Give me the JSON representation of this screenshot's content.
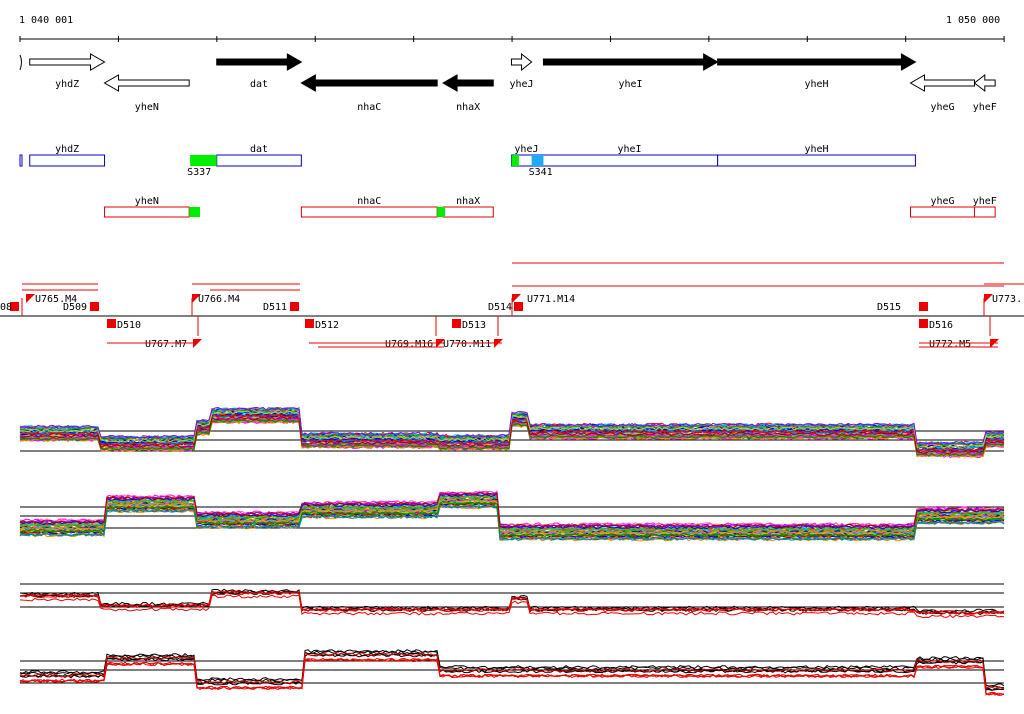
{
  "ruler": {
    "start_label": "1 040 001",
    "end_label": "1 050 000",
    "start_position": 1040001,
    "end_position": 1050000
  },
  "genes": {
    "forward": [
      {
        "label": "yhdZ",
        "start": 1040100,
        "end": 1040860,
        "style": "open"
      },
      {
        "label": "dat",
        "start": 1042000,
        "end": 1042860,
        "style": "filled"
      },
      {
        "label": "yheJ",
        "start": 1044995,
        "end": 1045200,
        "style": "open"
      },
      {
        "label": "yheI",
        "start": 1045320,
        "end": 1047090,
        "style": "filled"
      },
      {
        "label": "yheH",
        "start": 1047090,
        "end": 1049100,
        "style": "filled"
      }
    ],
    "reverse": [
      {
        "label": "yheN",
        "start": 1040860,
        "end": 1041720,
        "style": "open"
      },
      {
        "label": "nhaC",
        "start": 1042860,
        "end": 1044240,
        "style": "filled"
      },
      {
        "label": "nhaX",
        "start": 1044300,
        "end": 1044810,
        "style": "filled"
      },
      {
        "label": "yheG",
        "start": 1049050,
        "end": 1049700,
        "style": "open"
      },
      {
        "label": "yheF",
        "start": 1049700,
        "end": 1049910,
        "style": "open"
      }
    ],
    "partial_edge_label": ""
  },
  "transcript_units": {
    "forward": [
      {
        "label": "yhdZ",
        "start": 1040100,
        "end": 1040860
      },
      {
        "label": "dat",
        "start": 1042000,
        "end": 1042860
      },
      {
        "label": "yheJ",
        "start": 1044995,
        "end": 1045300
      },
      {
        "label": "yheI",
        "start": 1045300,
        "end": 1047090
      },
      {
        "label": "yheH",
        "start": 1047090,
        "end": 1049100
      }
    ],
    "reverse": [
      {
        "label": "yheN",
        "start": 1040860,
        "end": 1041720
      },
      {
        "label": "nhaC",
        "start": 1042860,
        "end": 1044240
      },
      {
        "label": "nhaX",
        "start": 1044300,
        "end": 1044810
      },
      {
        "label": "yheG",
        "start": 1049050,
        "end": 1049700
      },
      {
        "label": "yheF",
        "start": 1049700,
        "end": 1049910
      }
    ],
    "markers": [
      {
        "label": "S337",
        "start": 1041730,
        "end": 1042000,
        "color": "#00ee00"
      },
      {
        "label": "S341",
        "start": 1045200,
        "end": 1045320,
        "color": "#22aaff"
      }
    ],
    "green_ends": [
      {
        "start": 1041720,
        "end": 1041830
      },
      {
        "start": 1044240,
        "end": 1044320
      },
      {
        "start": 1044995,
        "end": 1045070
      }
    ]
  },
  "segments": {
    "down_labels_top": [
      "D509",
      "D511",
      "D514",
      "D515"
    ],
    "down_labels_bottom": [
      "D510",
      "D512",
      "D513",
      "D516"
    ],
    "upshift_labels": [
      "U765.M4",
      "U766.M4",
      "U767.M7",
      "U769.M16",
      "U770.M11",
      "U771.M14",
      "U772.M5",
      "U773."
    ],
    "edge_label": "08"
  },
  "expression_panels": [
    {
      "name": "forward-strand-expression",
      "threshold_lines": 3
    },
    {
      "name": "reverse-strand-expression",
      "threshold_lines": 3
    },
    {
      "name": "forward-strand-summary",
      "threshold_lines": 3
    },
    {
      "name": "reverse-strand-summary",
      "threshold_lines": 3
    }
  ],
  "colors": {
    "forward_tu": "#0000cc",
    "reverse_tu": "#dd0000",
    "segment_marker": "#ee0000",
    "summary_red": "#ee0000",
    "summary_black": "#000000"
  }
}
